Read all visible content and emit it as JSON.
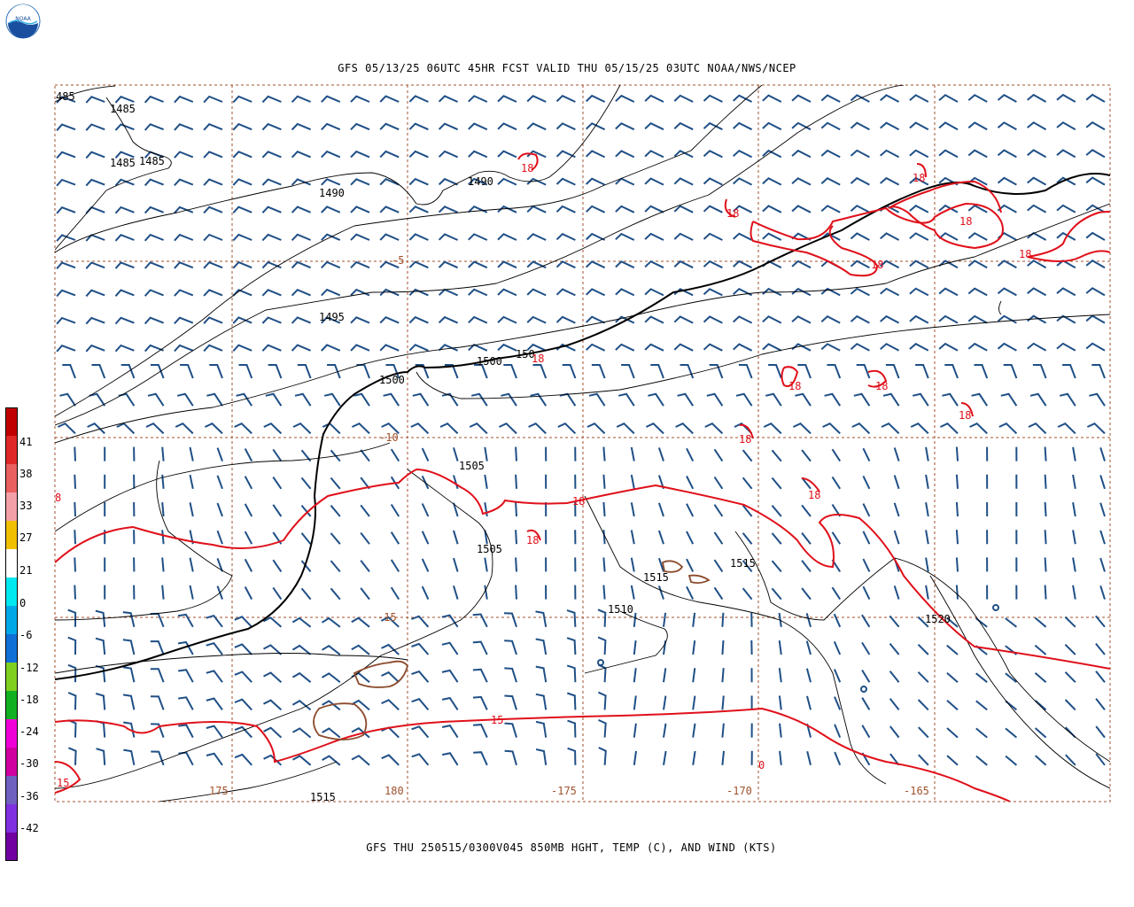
{
  "header": {
    "logo_text": "NOAA",
    "title": "GFS 05/13/25 06UTC 45HR FCST VALID THU 05/15/25 03UTC NOAA/NWS/NCEP"
  },
  "footer": {
    "caption": "GFS THU 250515/0300V045 850MB HGHT, TEMP (C), AND WIND (KTS)"
  },
  "colors": {
    "height_contour": "#000000",
    "temp_contour": "#e0101a",
    "wind_barb": "#1f4f86",
    "grid": "#a0522d",
    "coastline": "#8b4a2b"
  },
  "grid_labels": {
    "lat": [
      "-5",
      "-10",
      "-15"
    ],
    "lon": [
      "175",
      "180",
      "-175",
      "-170",
      "-165"
    ]
  },
  "height_labels": [
    "485",
    "1485",
    "1485",
    "1485",
    "1490",
    "1490",
    "1495",
    "1500",
    "1500",
    "150",
    "1505",
    "1505",
    "1510",
    "1515",
    "1515",
    "1520",
    "1515"
  ],
  "temp_labels": [
    "18",
    "18",
    "18",
    "18",
    "18",
    "18",
    "18",
    "18",
    "18",
    "18",
    "18",
    "18",
    "18",
    "18",
    "15",
    "15",
    "8",
    "0"
  ],
  "colorbar": {
    "labels": [
      "41",
      "38",
      "33",
      "27",
      "21",
      "0",
      "-6",
      "-12",
      "-18",
      "-24",
      "-30",
      "-36",
      "-42"
    ],
    "colors": [
      "#c00000",
      "#e02828",
      "#ea6060",
      "#f4a0a8",
      "#f0c000",
      "#ffffff",
      "#00e8f0",
      "#00a8e8",
      "#1070d8",
      "#80d020",
      "#10b020",
      "#f000d8",
      "#d000a0",
      "#7060c0",
      "#8030e0",
      "#7000a0"
    ]
  }
}
